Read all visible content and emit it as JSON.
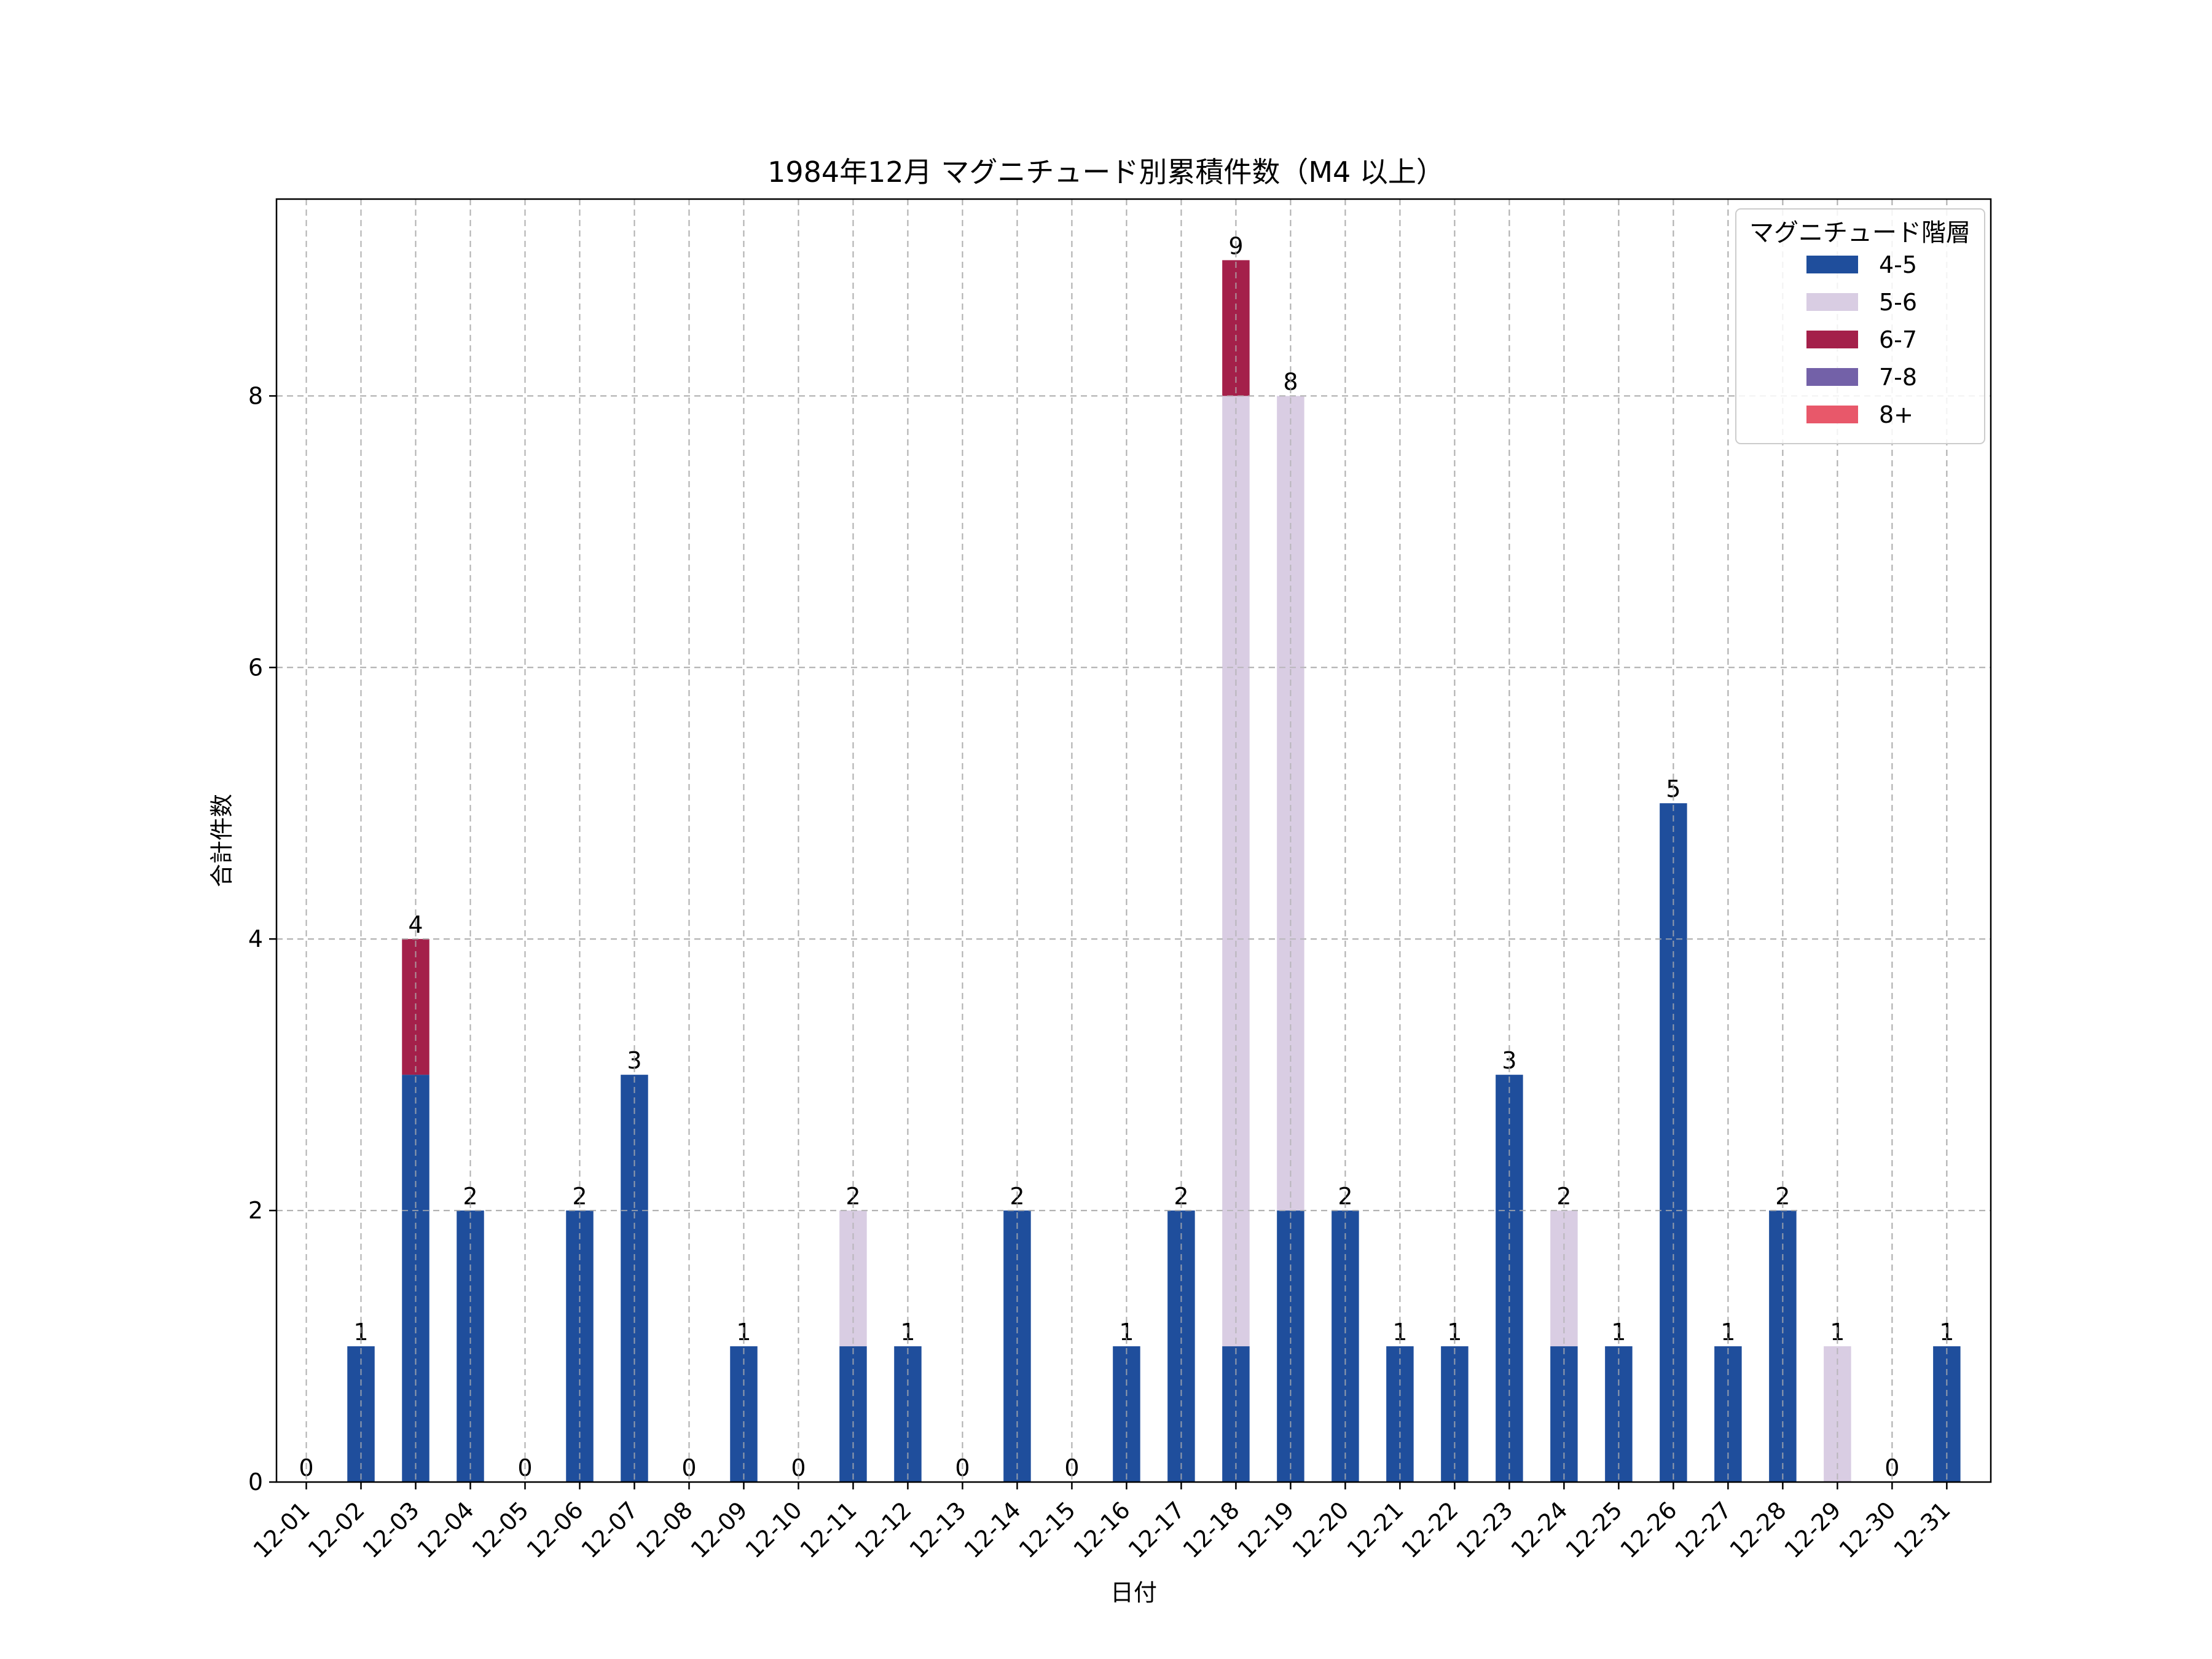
{
  "chart_data": {
    "type": "bar",
    "stacked": true,
    "title": "1984年12月 マグニチュード別累積件数（M4 以上）",
    "xlabel": "日付",
    "ylabel": "合計件数",
    "ylim": [
      0,
      9.45
    ],
    "yticks": [
      0,
      2,
      4,
      6,
      8
    ],
    "grid": true,
    "legend_position": "top-right",
    "legend_title": "マグニチュード階層",
    "categories": [
      "12-01",
      "12-02",
      "12-03",
      "12-04",
      "12-05",
      "12-06",
      "12-07",
      "12-08",
      "12-09",
      "12-10",
      "12-11",
      "12-12",
      "12-13",
      "12-14",
      "12-15",
      "12-16",
      "12-17",
      "12-18",
      "12-19",
      "12-20",
      "12-21",
      "12-22",
      "12-23",
      "12-24",
      "12-25",
      "12-26",
      "12-27",
      "12-28",
      "12-29",
      "12-30",
      "12-31"
    ],
    "series": [
      {
        "name": "4-5",
        "color": "#1f4e9c",
        "values": [
          0,
          1,
          3,
          2,
          0,
          2,
          3,
          0,
          1,
          0,
          1,
          1,
          0,
          2,
          0,
          1,
          2,
          1,
          2,
          2,
          1,
          1,
          3,
          1,
          1,
          5,
          1,
          2,
          0,
          0,
          1
        ]
      },
      {
        "name": "5-6",
        "color": "#d9cde3",
        "values": [
          0,
          0,
          0,
          0,
          0,
          0,
          0,
          0,
          0,
          0,
          1,
          0,
          0,
          0,
          0,
          0,
          0,
          7,
          6,
          0,
          0,
          0,
          0,
          1,
          0,
          0,
          0,
          0,
          1,
          0,
          0
        ]
      },
      {
        "name": "6-7",
        "color": "#a4204a",
        "values": [
          0,
          0,
          1,
          0,
          0,
          0,
          0,
          0,
          0,
          0,
          0,
          0,
          0,
          0,
          0,
          0,
          0,
          1,
          0,
          0,
          0,
          0,
          0,
          0,
          0,
          0,
          0,
          0,
          0,
          0,
          0
        ]
      },
      {
        "name": "7-8",
        "color": "#7361a8",
        "values": [
          0,
          0,
          0,
          0,
          0,
          0,
          0,
          0,
          0,
          0,
          0,
          0,
          0,
          0,
          0,
          0,
          0,
          0,
          0,
          0,
          0,
          0,
          0,
          0,
          0,
          0,
          0,
          0,
          0,
          0,
          0
        ]
      },
      {
        "name": "8+",
        "color": "#e8586a",
        "values": [
          0,
          0,
          0,
          0,
          0,
          0,
          0,
          0,
          0,
          0,
          0,
          0,
          0,
          0,
          0,
          0,
          0,
          0,
          0,
          0,
          0,
          0,
          0,
          0,
          0,
          0,
          0,
          0,
          0,
          0,
          0
        ]
      }
    ],
    "totals": [
      0,
      1,
      4,
      2,
      0,
      2,
      3,
      0,
      1,
      0,
      2,
      1,
      0,
      2,
      0,
      1,
      2,
      9,
      8,
      2,
      1,
      1,
      3,
      2,
      1,
      5,
      1,
      2,
      1,
      0,
      1
    ]
  }
}
